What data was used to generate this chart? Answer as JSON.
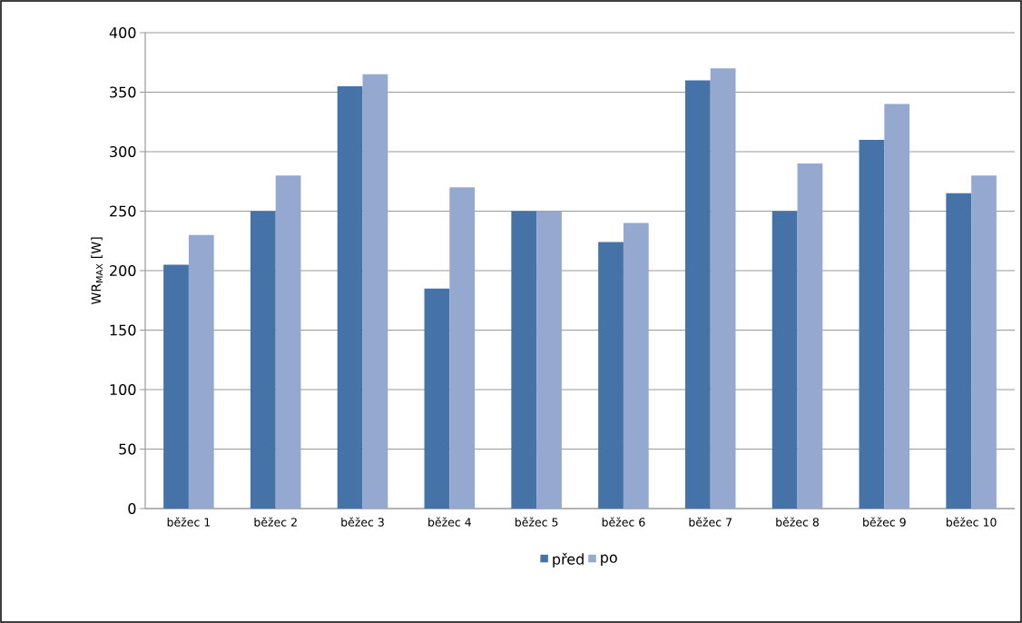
{
  "chart_data": {
    "type": "bar",
    "ylabel": "WR$_{MAX}$ [W]",
    "categories": [
      "běžec 1",
      "běžec 2",
      "běžec 3",
      "běžec 4",
      "běžec 5",
      "běžec 6",
      "běžec 7",
      "běžec 8",
      "běžec 9",
      "běžec 10"
    ],
    "series": [
      {
        "name": "před",
        "color": "#4572a7",
        "values": [
          205,
          250,
          355,
          185,
          250,
          224,
          360,
          250,
          310,
          265
        ]
      },
      {
        "name": "po",
        "color": "#95a9d0",
        "values": [
          230,
          280,
          365,
          270,
          250,
          240,
          370,
          290,
          340,
          280
        ]
      }
    ],
    "ylim": [
      0,
      400
    ],
    "yticks": [
      0,
      50,
      100,
      150,
      200,
      250,
      300,
      350,
      400
    ],
    "grid": "y",
    "legend": "bottom"
  }
}
